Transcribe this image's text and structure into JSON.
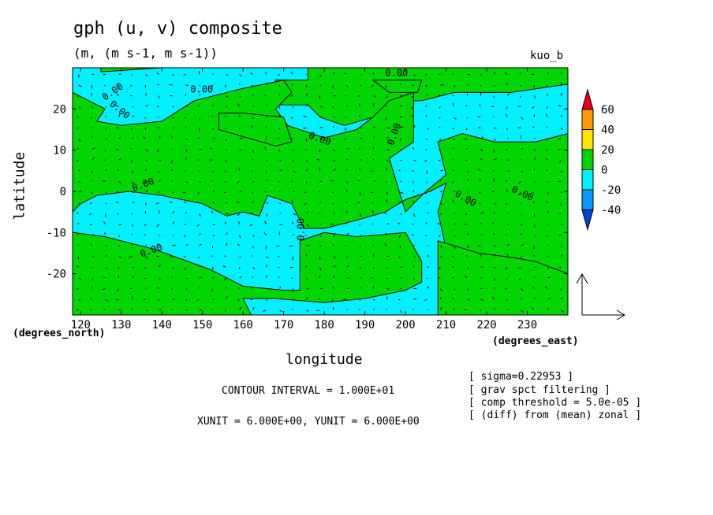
{
  "header": {
    "title": "gph (u, v) composite",
    "subtitle": "(m, (m s-1, m s-1))",
    "run_label": "kuo_b"
  },
  "axes": {
    "x_name": "longitude",
    "x_units": "(degrees_east)",
    "y_name": "latitude",
    "y_units": "(degrees_north)"
  },
  "footer": {
    "contour_interval": "CONTOUR INTERVAL = 1.000E+01",
    "vector_units": "XUNIT = 6.000E+00, YUNIT = 6.000E+00",
    "notes": [
      "[ sigma=0.22953 ]",
      "[ grav spct filtering ]",
      "[ comp threshold = 5.0e-05 ]",
      "[ (diff) from (mean) zonal ]"
    ]
  },
  "chart_data": {
    "type": "heatmap",
    "description_of_fields": "shaded contour of geopotential height with wind vectors",
    "xlim": [
      118,
      240
    ],
    "ylim": [
      -30,
      30
    ],
    "x_ticks": [
      120,
      130,
      140,
      150,
      160,
      170,
      180,
      190,
      200,
      210,
      220,
      230
    ],
    "y_ticks": [
      -20,
      -10,
      0,
      10,
      20
    ],
    "contour_labels": [
      "0.00",
      "0.00",
      "0.00",
      "0.00",
      "0.00",
      "0.00",
      "0.00",
      "0.00",
      "0.00",
      "0.00",
      "0.00"
    ],
    "colorbar": {
      "ticks": [
        60,
        40,
        20,
        0,
        -20,
        -40
      ],
      "colors": [
        "#e8001a",
        "#ff9a00",
        "#ffe400",
        "#00d600",
        "#00f0ff",
        "#0a96ff",
        "#0040e0"
      ]
    },
    "fill_colors": {
      "positive": "#00d600",
      "negative": "#00f0ff"
    },
    "regions_positive": [
      [
        [
          118,
          30
        ],
        [
          125,
          30
        ],
        [
          125,
          29
        ],
        [
          140,
          30
        ],
        [
          176,
          30
        ],
        [
          176,
          27
        ],
        [
          168,
          27
        ],
        [
          168,
          21
        ],
        [
          176,
          21
        ],
        [
          179,
          18
        ],
        [
          185,
          16
        ],
        [
          192,
          18
        ],
        [
          196,
          22
        ],
        [
          199,
          22
        ],
        [
          204,
          22
        ],
        [
          208,
          23
        ],
        [
          212,
          24
        ],
        [
          226,
          24
        ],
        [
          240,
          26
        ],
        [
          240,
          30
        ]
      ],
      [
        [
          118,
          24
        ],
        [
          122,
          22
        ],
        [
          126,
          20
        ],
        [
          124,
          17
        ],
        [
          130,
          16
        ],
        [
          140,
          17
        ],
        [
          148,
          22
        ],
        [
          160,
          25
        ],
        [
          170,
          27
        ],
        [
          172,
          24
        ],
        [
          168,
          20
        ],
        [
          171,
          16
        ],
        [
          180,
          13
        ],
        [
          188,
          15
        ],
        [
          192,
          18
        ],
        [
          196,
          22
        ],
        [
          202,
          24
        ],
        [
          202,
          12
        ],
        [
          196,
          8
        ],
        [
          200,
          -5
        ],
        [
          205,
          0
        ],
        [
          210,
          4
        ],
        [
          208,
          12
        ],
        [
          214,
          14
        ],
        [
          222,
          12
        ],
        [
          232,
          12
        ],
        [
          240,
          14
        ],
        [
          240,
          -20
        ],
        [
          234,
          -18
        ],
        [
          226,
          -18
        ],
        [
          216,
          -15
        ],
        [
          210,
          -14
        ],
        [
          208,
          -5
        ],
        [
          210,
          2
        ],
        [
          206,
          0
        ],
        [
          200,
          -2
        ],
        [
          195,
          -5
        ],
        [
          188,
          -7
        ],
        [
          180,
          -9
        ],
        [
          175,
          -9
        ],
        [
          172,
          -3
        ],
        [
          166,
          -1
        ],
        [
          164,
          -6
        ],
        [
          160,
          -5
        ],
        [
          156,
          -6
        ],
        [
          150,
          -3
        ],
        [
          140,
          -1
        ],
        [
          132,
          0
        ],
        [
          124,
          -1
        ],
        [
          120,
          -3
        ],
        [
          118,
          -5
        ]
      ],
      [
        [
          154,
          15
        ],
        [
          168,
          11
        ],
        [
          172,
          12
        ],
        [
          170,
          18
        ],
        [
          160,
          19
        ],
        [
          154,
          19
        ]
      ],
      [
        [
          192,
          27
        ],
        [
          204,
          27
        ],
        [
          203,
          24
        ],
        [
          196,
          24
        ]
      ],
      [
        [
          118,
          -10
        ],
        [
          126,
          -11
        ],
        [
          138,
          -14
        ],
        [
          152,
          -19
        ],
        [
          160,
          -23
        ],
        [
          170,
          -24
        ],
        [
          174,
          -24
        ],
        [
          174,
          -12
        ],
        [
          180,
          -10
        ],
        [
          188,
          -11
        ],
        [
          200,
          -10
        ],
        [
          204,
          -17
        ],
        [
          204,
          -22
        ],
        [
          200,
          -24
        ],
        [
          190,
          -26
        ],
        [
          180,
          -27
        ],
        [
          168,
          -26
        ],
        [
          160,
          -26
        ],
        [
          162,
          -30
        ],
        [
          118,
          -30
        ]
      ],
      [
        [
          208,
          -12
        ],
        [
          218,
          -15
        ],
        [
          226,
          -16
        ],
        [
          232,
          -17
        ],
        [
          240,
          -20
        ],
        [
          240,
          -30
        ],
        [
          208,
          -30
        ]
      ]
    ]
  }
}
